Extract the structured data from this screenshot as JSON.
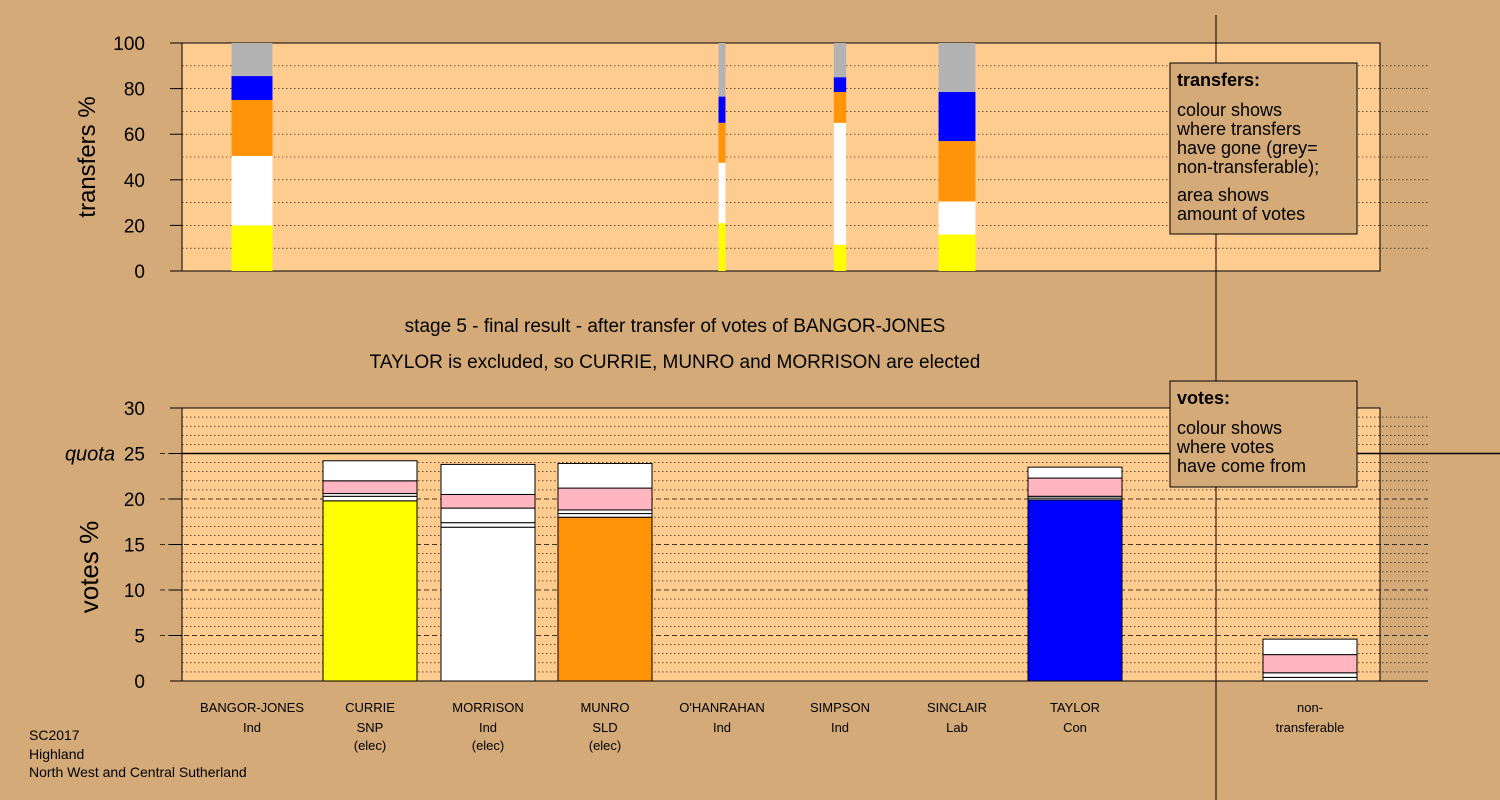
{
  "colors": {
    "background": "#d4aa78",
    "plot_bg": "#ffcc8f",
    "SNP": "#ffff00",
    "Ind": "#ffffff",
    "SLD": "#ff9408",
    "Con": "#0000ff",
    "Lab": "#ffb6c1",
    "nontransferable": "#b3b3b3"
  },
  "headings": {
    "stage": "stage 5 - final result - after transfer of votes of BANGOR-JONES",
    "result": "TAYLOR is excluded, so CURRIE, MUNRO and MORRISON are elected"
  },
  "footer": {
    "line1": "SC2017",
    "line2": "Highland",
    "line3": "North West and Central Sutherland"
  },
  "legend_transfers": {
    "title": "transfers:",
    "lines": [
      "colour shows",
      "where transfers",
      "have gone (grey=",
      "non-transferable);",
      "area shows",
      "amount of votes"
    ]
  },
  "legend_votes": {
    "title": "votes:",
    "lines": [
      "colour shows",
      "where votes",
      "have come from"
    ]
  },
  "candidates": [
    {
      "name": "BANGOR-JONES",
      "party": "Ind",
      "status": ""
    },
    {
      "name": "CURRIE",
      "party": "SNP",
      "status": "(elec)"
    },
    {
      "name": "MORRISON",
      "party": "Ind",
      "status": "(elec)"
    },
    {
      "name": "MUNRO",
      "party": "SLD",
      "status": "(elec)"
    },
    {
      "name": "O'HANRAHAN",
      "party": "Ind",
      "status": ""
    },
    {
      "name": "SIMPSON",
      "party": "Ind",
      "status": ""
    },
    {
      "name": "SINCLAIR",
      "party": "Lab",
      "status": ""
    },
    {
      "name": "TAYLOR",
      "party": "Con",
      "status": ""
    },
    {
      "name": "non-",
      "party": "transferable",
      "status": ""
    }
  ],
  "chart_data": [
    {
      "type": "bar",
      "stacked": true,
      "ylabel": "transfers %",
      "ylim": [
        0,
        100
      ],
      "yticks": [
        0,
        20,
        40,
        60,
        80,
        100
      ],
      "transfers": [
        {
          "from": "BANGOR-JONES",
          "width": 1.0,
          "segments": [
            {
              "to": "SNP",
              "value": 20
            },
            {
              "to": "Ind",
              "value": 30.5
            },
            {
              "to": "SLD",
              "value": 24.5
            },
            {
              "to": "Con",
              "value": 10.5
            },
            {
              "to": "nontransferable",
              "value": 14.5
            }
          ]
        },
        {
          "from": "SIMPSON_A",
          "width": 0.17,
          "segments": [
            {
              "to": "SNP",
              "value": 21
            },
            {
              "to": "Ind",
              "value": 26.5
            },
            {
              "to": "SLD",
              "value": 17.5
            },
            {
              "to": "Con",
              "value": 11.5
            },
            {
              "to": "nontransferable",
              "value": 23.5
            }
          ]
        },
        {
          "from": "SIMPSON_B",
          "width": 0.3,
          "segments": [
            {
              "to": "SNP",
              "value": 11.5
            },
            {
              "to": "Ind",
              "value": 53.5
            },
            {
              "to": "SLD",
              "value": 13.5
            },
            {
              "to": "Con",
              "value": 6.5
            },
            {
              "to": "nontransferable",
              "value": 15
            }
          ]
        },
        {
          "from": "SINCLAIR",
          "width": 0.9,
          "segments": [
            {
              "to": "SNP",
              "value": 16
            },
            {
              "to": "Ind",
              "value": 14.5
            },
            {
              "to": "SLD",
              "value": 26.5
            },
            {
              "to": "Con",
              "value": 21.5
            },
            {
              "to": "nontransferable",
              "value": 21.5
            }
          ]
        }
      ]
    },
    {
      "type": "bar",
      "stacked": true,
      "ylabel": "votes %",
      "ylim": [
        0,
        30
      ],
      "yticks": [
        0,
        5,
        10,
        15,
        20,
        25,
        30
      ],
      "quota": 25,
      "quota_label": "quota",
      "candidates": [
        "BANGOR-JONES",
        "CURRIE",
        "MORRISON",
        "MUNRO",
        "O'HANRAHAN",
        "SIMPSON",
        "SINCLAIR",
        "TAYLOR",
        "non-transferable"
      ],
      "votes": [
        {
          "candidate": "BANGOR-JONES",
          "segments": []
        },
        {
          "candidate": "CURRIE",
          "segments": [
            {
              "from": "SNP",
              "value": 19.8
            },
            {
              "from": "Ind",
              "value": 0.5
            },
            {
              "from": "Ind",
              "value": 0.3
            },
            {
              "from": "Lab",
              "value": 1.4
            },
            {
              "from": "Ind",
              "value": 2.2
            }
          ]
        },
        {
          "candidate": "MORRISON",
          "segments": [
            {
              "from": "Ind",
              "value": 16.9
            },
            {
              "from": "Ind",
              "value": 0.5
            },
            {
              "from": "Ind",
              "value": 1.6
            },
            {
              "from": "Lab",
              "value": 1.5
            },
            {
              "from": "Ind",
              "value": 3.3
            }
          ]
        },
        {
          "candidate": "MUNRO",
          "segments": [
            {
              "from": "SLD",
              "value": 18.0
            },
            {
              "from": "Ind",
              "value": 0.4
            },
            {
              "from": "Ind",
              "value": 0.4
            },
            {
              "from": "Lab",
              "value": 2.4
            },
            {
              "from": "Ind",
              "value": 2.7
            }
          ]
        },
        {
          "candidate": "O'HANRAHAN",
          "segments": []
        },
        {
          "candidate": "SIMPSON",
          "segments": []
        },
        {
          "candidate": "SINCLAIR",
          "segments": []
        },
        {
          "candidate": "TAYLOR",
          "segments": [
            {
              "from": "Con",
              "value": 19.9
            },
            {
              "from": "Ind",
              "value": 0.2
            },
            {
              "from": "Ind",
              "value": 0.2
            },
            {
              "from": "Lab",
              "value": 2.0
            },
            {
              "from": "Ind",
              "value": 1.2
            }
          ]
        },
        {
          "candidate": "non-transferable",
          "segments": [
            {
              "from": "Ind",
              "value": 0.4
            },
            {
              "from": "Ind",
              "value": 0.5
            },
            {
              "from": "Lab",
              "value": 2.0
            },
            {
              "from": "Ind",
              "value": 1.7
            }
          ]
        }
      ]
    }
  ]
}
